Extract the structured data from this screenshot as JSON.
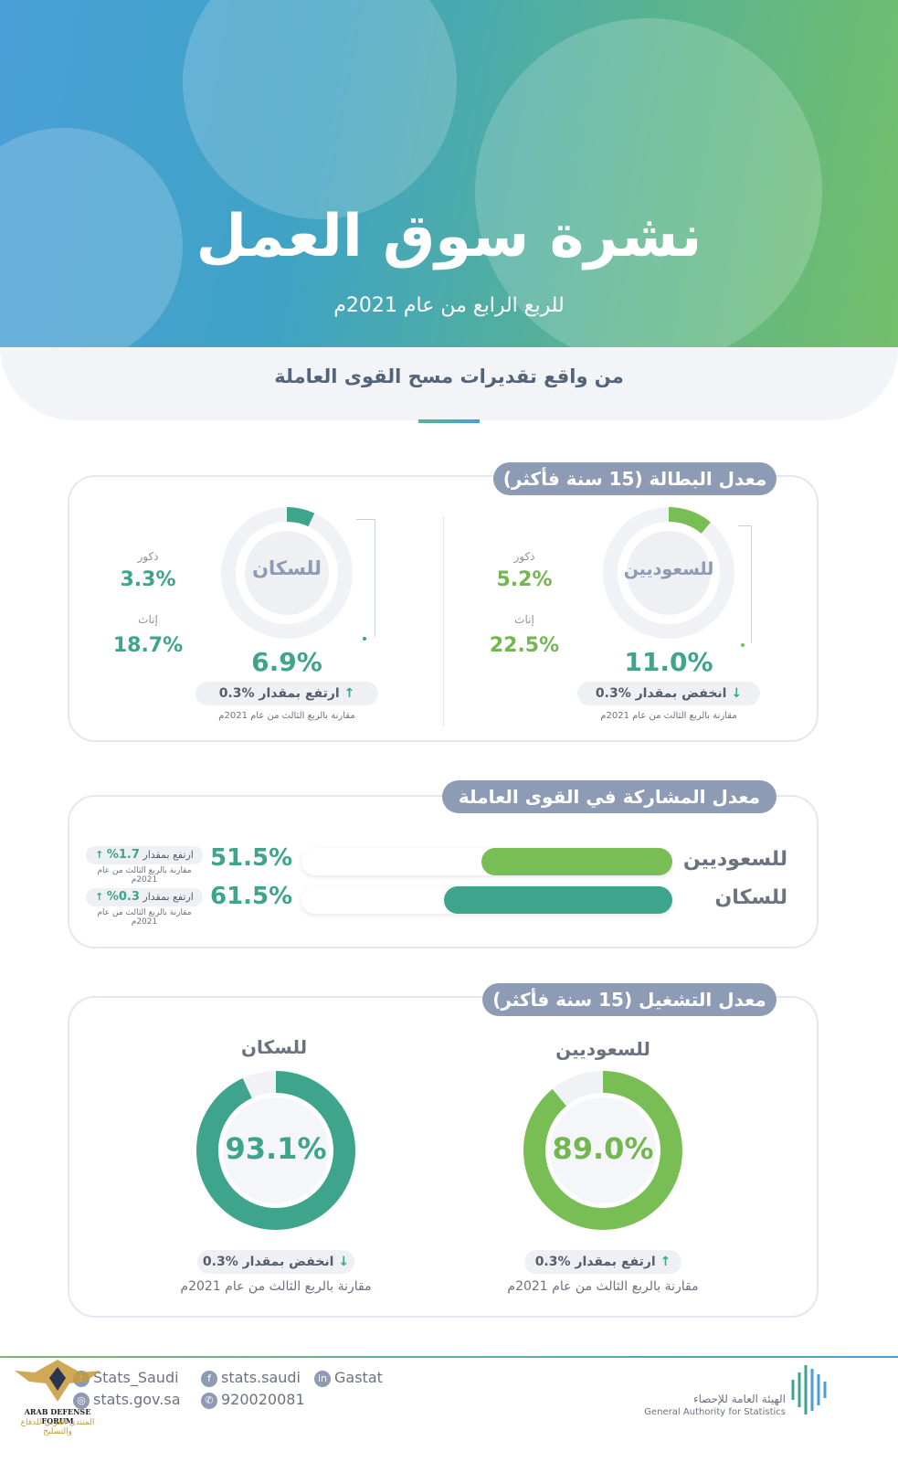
{
  "hero": {
    "title": "نشرة سوق العمل",
    "subtitle": "للربع الرابع من عام 2021م",
    "colors": {
      "blue": "#4a9fd8",
      "green": "#74bf6a"
    }
  },
  "band": {
    "text": "من واقع تقديرات مسح القوى العاملة"
  },
  "unemployment": {
    "title": "معدل البطالة (15 سنة فأكثر)",
    "saudis": {
      "label": "للسعوديين",
      "rate": "11.0%",
      "rate_value": 11.0,
      "males_label": "ذكور",
      "males": "5.2%",
      "females_label": "إناث",
      "females": "22.5%",
      "change": "انخفض بمقدار %0.3",
      "direction": "down",
      "compare": "مقارنة بالربع الثالث من عام 2021م"
    },
    "population": {
      "label": "للسكان",
      "rate": "6.9%",
      "rate_value": 6.9,
      "males_label": "ذكور",
      "males": "3.3%",
      "females_label": "إناث",
      "females": "18.7%",
      "change": "ارتفع بمقدار %0.3",
      "direction": "up",
      "compare": "مقارنة بالربع الثالث من عام 2021م"
    }
  },
  "participation": {
    "title": "معدل المشاركة في القوى العاملة",
    "rows": [
      {
        "label": "للسعوديين",
        "pct": "51.5%",
        "value": 51.5,
        "change_label": "ارتفع بمقدار",
        "change": "1.7%",
        "compare": "مقارنة بالربع الثالث من عام 2021م",
        "color": "#79bd55"
      },
      {
        "label": "للسكان",
        "pct": "61.5%",
        "value": 61.5,
        "change_label": "ارتفع بمقدار",
        "change": "0.3%",
        "compare": "مقارنة بالربع الثالث من عام 2021م",
        "color": "#3ea48c"
      }
    ]
  },
  "employment": {
    "title": "معدل التشغيل (15 سنة فأكثر)",
    "saudis": {
      "label": "للسعوديين",
      "rate": "89.0%",
      "rate_value": 89.0,
      "change": "ارتفع بمقدار %0.3",
      "direction": "up",
      "compare": "مقارنة بالربع الثالث من عام 2021م",
      "color": "#79bd55"
    },
    "population": {
      "label": "للسكان",
      "rate": "93.1%",
      "rate_value": 93.1,
      "change": "انخفض بمقدار %0.3",
      "direction": "down",
      "compare": "مقارنة بالربع الثالث من عام 2021م",
      "color": "#3ea48c"
    }
  },
  "footer": {
    "twitter": "Stats_Saudi",
    "facebook": "stats.saudi",
    "linkedin": "Gastat",
    "website": "stats.gov.sa",
    "phone": "920020081",
    "org_ar": "الهيئة العامة للإحصاء",
    "org_en": "General Authority for Statistics",
    "watermark_en": "ARAB DEFENSE FORUM",
    "watermark_ar": "المنتدى العربي للدفاع والتسليح"
  }
}
